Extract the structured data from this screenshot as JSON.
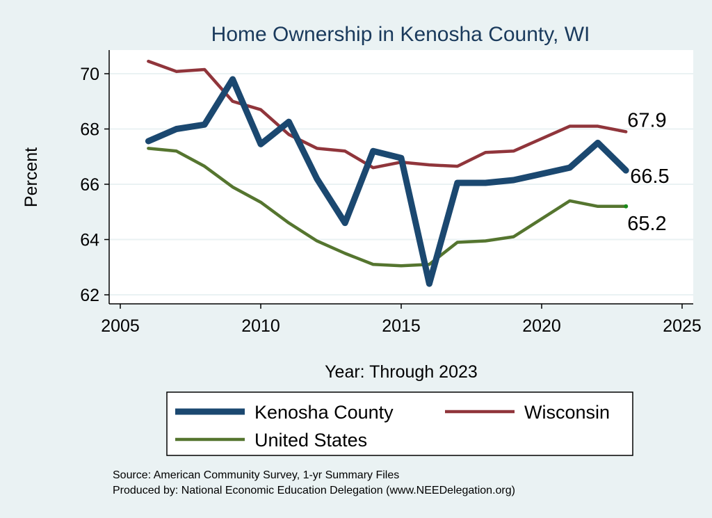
{
  "chart_data": {
    "type": "line",
    "title": "Home Ownership in Kenosha County, WI",
    "xlabel": "Year: Through 2023",
    "ylabel": "Percent",
    "xlim": [
      2005,
      2025
    ],
    "ylim": [
      61.5,
      70.9
    ],
    "xticks": [
      2005,
      2010,
      2015,
      2020,
      2025
    ],
    "yticks": [
      62,
      64,
      66,
      68,
      70
    ],
    "grid": true,
    "legend_placement": "bottom",
    "x": [
      2006,
      2007,
      2008,
      2009,
      2010,
      2011,
      2012,
      2013,
      2014,
      2015,
      2016,
      2017,
      2018,
      2019,
      2021,
      2022,
      2023
    ],
    "series": [
      {
        "name": "Kenosha County",
        "color": "#1b4870",
        "values": [
          67.56,
          68.0,
          68.16,
          69.8,
          67.45,
          68.26,
          66.2,
          64.6,
          67.2,
          66.95,
          62.4,
          66.05,
          66.05,
          66.15,
          66.6,
          67.5,
          66.5
        ],
        "end_label": "66.5"
      },
      {
        "name": "Wisconsin",
        "color": "#90353b",
        "values": [
          70.45,
          70.08,
          70.15,
          69.0,
          68.7,
          67.8,
          67.3,
          67.2,
          66.6,
          66.8,
          66.7,
          66.65,
          67.15,
          67.2,
          68.1,
          68.1,
          67.9
        ],
        "end_label": "67.9"
      },
      {
        "name": "United States",
        "color": "#55752f",
        "values": [
          67.3,
          67.2,
          66.65,
          65.9,
          65.35,
          64.6,
          63.95,
          63.5,
          63.1,
          63.05,
          63.1,
          63.9,
          63.95,
          64.1,
          65.4,
          65.2,
          65.2
        ],
        "end_label": "65.2"
      }
    ],
    "notes": [
      "Source: American Community Survey, 1-yr Summary Files",
      "Produced by: National Economic Education Delegation (www.NEEDelegation.org)"
    ]
  }
}
